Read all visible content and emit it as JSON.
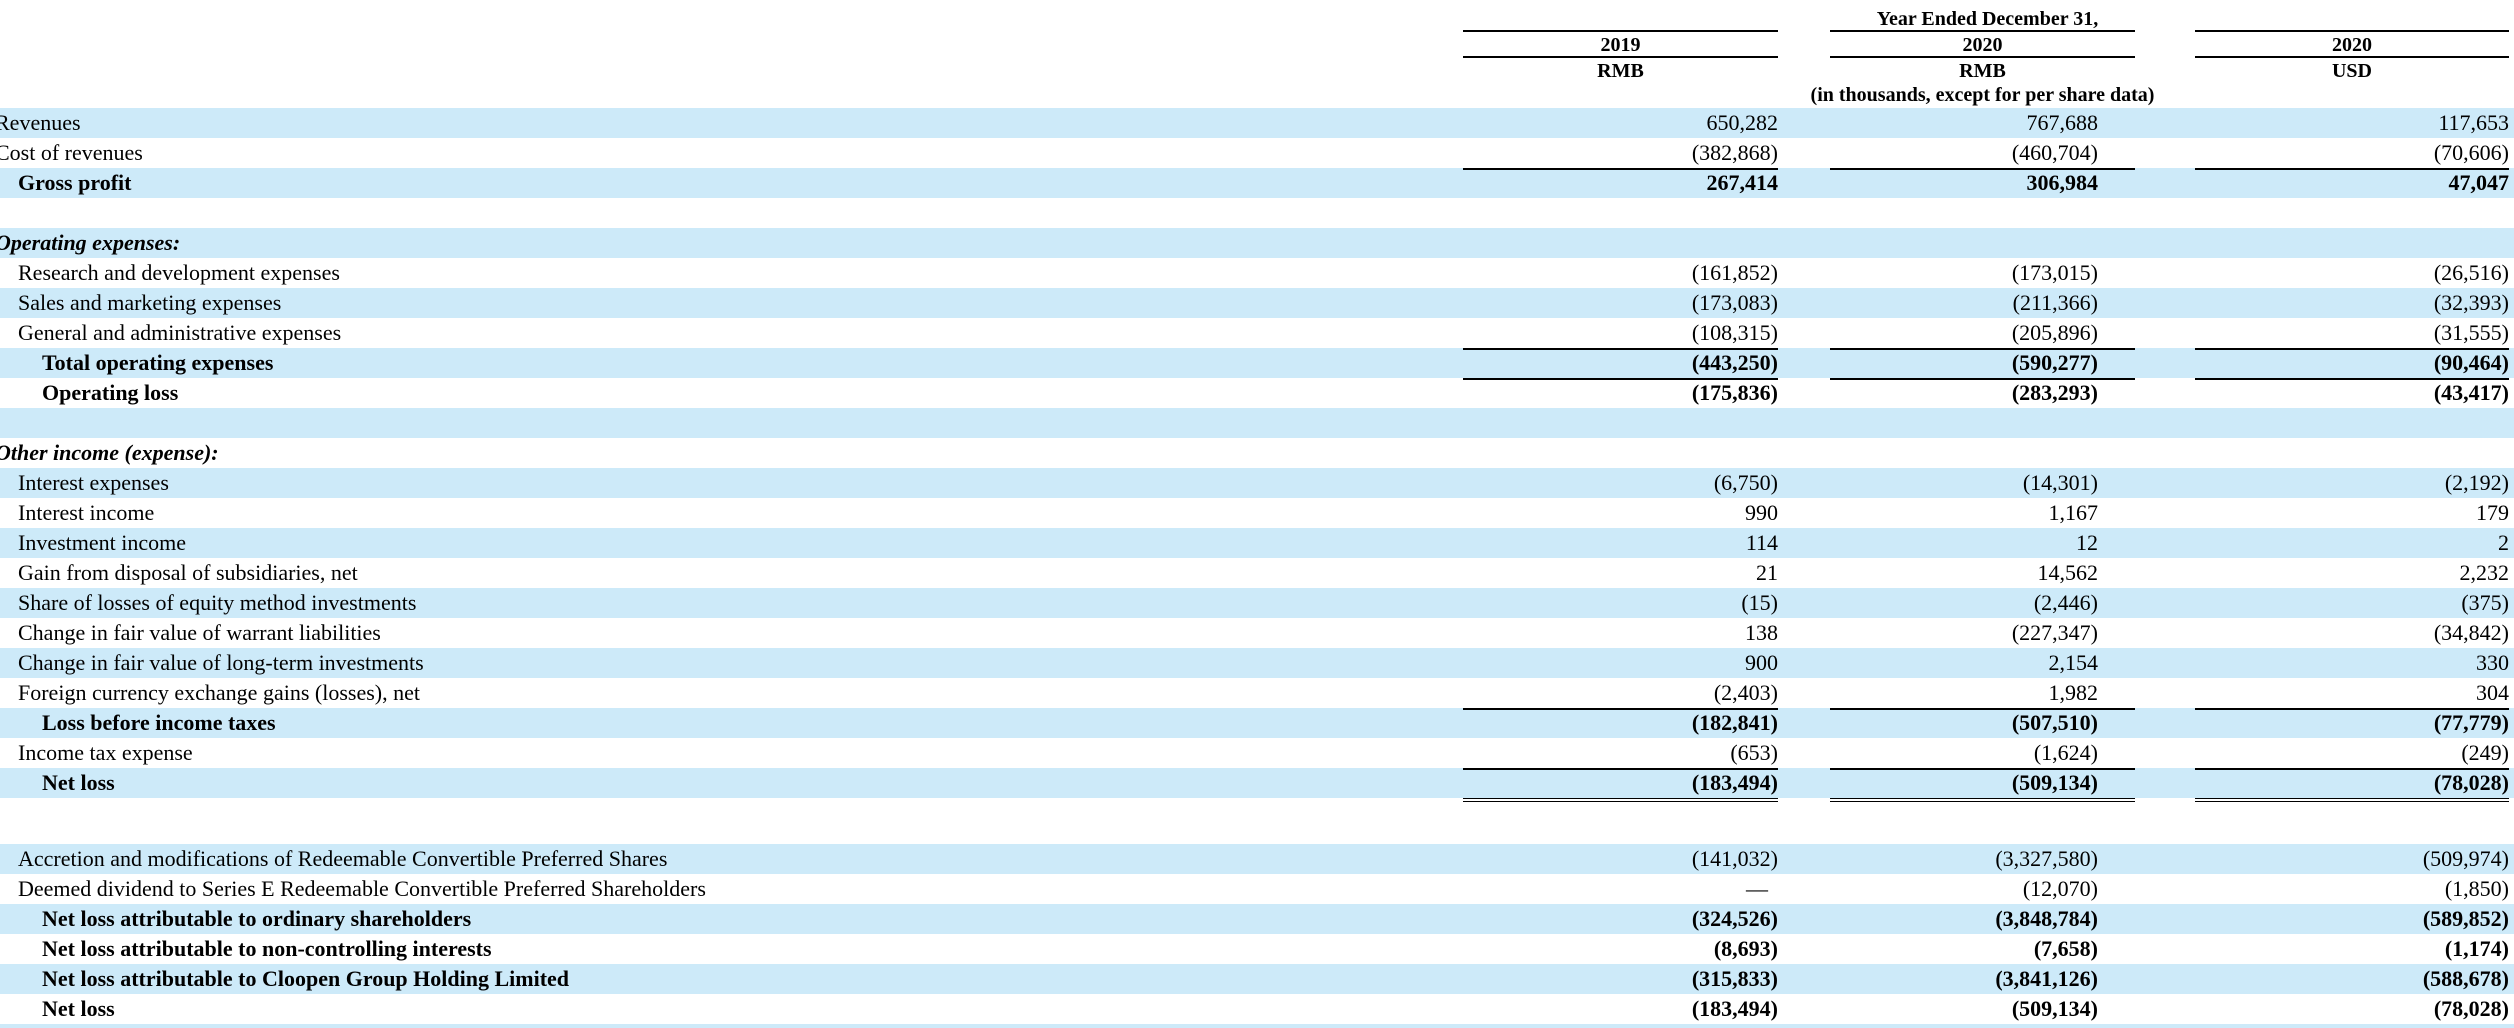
{
  "header": {
    "period": "Year Ended December 31,",
    "col1_year": "2019",
    "col1_ccy": "RMB",
    "col2_year": "2020",
    "col2_ccy": "RMB",
    "col2_note": "(in thousands, except for per share data)",
    "col3_year": "2020",
    "col3_ccy": "USD"
  },
  "rows": [
    {
      "label": "Revenues",
      "v": [
        "650,282",
        "767,688",
        "117,653"
      ]
    },
    {
      "label": "Cost of revenues",
      "v": [
        "(382,868)",
        "(460,704)",
        "(70,606)"
      ]
    },
    {
      "label": "Gross profit",
      "v": [
        "267,414",
        "306,984",
        "47,047"
      ]
    },
    {
      "label": "Operating expenses:"
    },
    {
      "label": "Research and development expenses",
      "v": [
        "(161,852)",
        "(173,015)",
        "(26,516)"
      ]
    },
    {
      "label": "Sales and marketing expenses",
      "v": [
        "(173,083)",
        "(211,366)",
        "(32,393)"
      ]
    },
    {
      "label": "General and administrative expenses",
      "v": [
        "(108,315)",
        "(205,896)",
        "(31,555)"
      ]
    },
    {
      "label": "Total operating expenses",
      "v": [
        "(443,250)",
        "(590,277)",
        "(90,464)"
      ]
    },
    {
      "label": "Operating loss",
      "v": [
        "(175,836)",
        "(283,293)",
        "(43,417)"
      ]
    },
    {
      "label": "Other income (expense):"
    },
    {
      "label": "Interest expenses",
      "v": [
        "(6,750)",
        "(14,301)",
        "(2,192)"
      ]
    },
    {
      "label": "Interest income",
      "v": [
        "990",
        "1,167",
        "179"
      ]
    },
    {
      "label": "Investment income",
      "v": [
        "114",
        "12",
        "2"
      ]
    },
    {
      "label": "Gain from disposal of subsidiaries, net",
      "v": [
        "21",
        "14,562",
        "2,232"
      ]
    },
    {
      "label": "Share of losses of equity method investments",
      "v": [
        "(15)",
        "(2,446)",
        "(375)"
      ]
    },
    {
      "label": "Change in fair value of warrant liabilities",
      "v": [
        "138",
        "(227,347)",
        "(34,842)"
      ]
    },
    {
      "label": "Change in fair value of long-term investments",
      "v": [
        "900",
        "2,154",
        "330"
      ]
    },
    {
      "label": "Foreign currency exchange gains (losses), net",
      "v": [
        "(2,403)",
        "1,982",
        "304"
      ]
    },
    {
      "label": "Loss before income taxes",
      "v": [
        "(182,841)",
        "(507,510)",
        "(77,779)"
      ]
    },
    {
      "label": "Income tax expense",
      "v": [
        "(653)",
        "(1,624)",
        "(249)"
      ]
    },
    {
      "label": "Net loss",
      "v": [
        "(183,494)",
        "(509,134)",
        "(78,028)"
      ]
    },
    {
      "label": "Accretion and modifications of Redeemable Convertible Preferred Shares",
      "v": [
        "(141,032)",
        "(3,327,580)",
        "(509,974)"
      ]
    },
    {
      "label": "Deemed dividend to Series E Redeemable Convertible Preferred Shareholders",
      "v": [
        "—",
        "(12,070)",
        "(1,850)"
      ]
    },
    {
      "label": "Net loss attributable to ordinary shareholders",
      "v": [
        "(324,526)",
        "(3,848,784)",
        "(589,852)"
      ]
    },
    {
      "label": "Net loss attributable to non-controlling interests",
      "v": [
        "(8,693)",
        "(7,658)",
        "(1,174)"
      ]
    },
    {
      "label": "Net loss attributable to Cloopen Group Holding Limited",
      "v": [
        "(315,833)",
        "(3,841,126)",
        "(588,678)"
      ]
    },
    {
      "label": "Net loss",
      "v": [
        "(183,494)",
        "(509,134)",
        "(78,028)"
      ]
    }
  ]
}
